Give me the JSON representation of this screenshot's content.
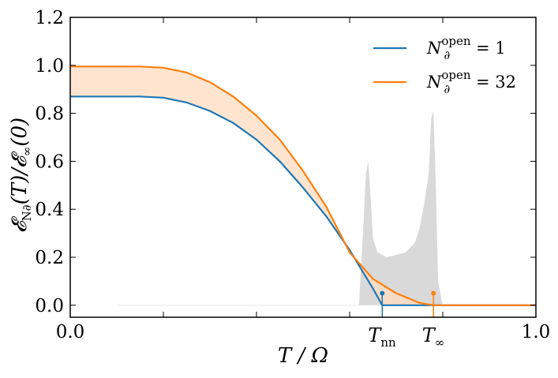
{
  "chart_data": {
    "type": "line",
    "xlabel": "T / Ω",
    "ylabel": "𝓔_{N∂}(T) / 𝓔_∞(0)",
    "ylabel_main": "𝓔",
    "ylabel_sub": "N∂",
    "ylabel_rest": "(T)/𝓔",
    "ylabel_sub2": "∞",
    "ylabel_end": "(0)",
    "xlim": [
      0.0,
      1.0
    ],
    "ylim": [
      -0.05,
      1.2
    ],
    "x_tick_labels": [
      "0.0",
      "1.0"
    ],
    "y_ticks": [
      0.0,
      0.2,
      0.4,
      0.6,
      0.8,
      1.0,
      1.2
    ],
    "y_tick_labels": [
      "0.0",
      "0.2",
      "0.4",
      "0.6",
      "0.8",
      "1.0",
      "1.2"
    ],
    "grid": false,
    "legend_position": "top-right",
    "colors": {
      "series1": "#1f77b4",
      "series2": "#ff7f0e",
      "band": "#ffdcc0",
      "hist": "#d9d9d9",
      "axis": "#000000"
    },
    "series": [
      {
        "name": "N∂^open = 1",
        "legend_main": "N",
        "legend_sub": "∂",
        "legend_sup": "open",
        "legend_value": " = 1",
        "x": [
          0.0,
          0.05,
          0.1,
          0.15,
          0.2,
          0.25,
          0.3,
          0.35,
          0.4,
          0.45,
          0.5,
          0.55,
          0.6,
          0.65,
          0.67
        ],
        "y": [
          0.87,
          0.87,
          0.87,
          0.87,
          0.865,
          0.845,
          0.81,
          0.76,
          0.69,
          0.6,
          0.49,
          0.37,
          0.23,
          0.07,
          0.0
        ]
      },
      {
        "name": "N∂^open = 32",
        "legend_main": "N",
        "legend_sub": "∂",
        "legend_sup": "open",
        "legend_value": " = 32",
        "x": [
          0.0,
          0.05,
          0.1,
          0.15,
          0.2,
          0.25,
          0.3,
          0.35,
          0.4,
          0.45,
          0.5,
          0.55,
          0.6,
          0.65,
          0.7,
          0.75,
          0.78
        ],
        "y": [
          0.995,
          0.995,
          0.995,
          0.995,
          0.99,
          0.97,
          0.93,
          0.87,
          0.79,
          0.69,
          0.56,
          0.41,
          0.22,
          0.11,
          0.05,
          0.01,
          0.0
        ]
      }
    ],
    "histogram": {
      "description": "grey density of spectrum",
      "x": [
        0.62,
        0.63,
        0.635,
        0.64,
        0.645,
        0.65,
        0.66,
        0.68,
        0.7,
        0.72,
        0.74,
        0.75,
        0.76,
        0.77,
        0.775,
        0.78,
        0.785,
        0.79,
        0.8
      ],
      "y": [
        0.0,
        0.35,
        0.55,
        0.6,
        0.45,
        0.28,
        0.22,
        0.2,
        0.21,
        0.22,
        0.26,
        0.32,
        0.42,
        0.55,
        0.78,
        0.81,
        0.5,
        0.1,
        0.0
      ]
    },
    "markers": [
      {
        "label_main": "T",
        "label_sub": "nn",
        "x": 0.67,
        "y": 0.05,
        "color": "#1f77b4"
      },
      {
        "label_main": "T",
        "label_sub": "∞",
        "x": 0.78,
        "y": 0.05,
        "color": "#ff7f0e"
      }
    ]
  }
}
